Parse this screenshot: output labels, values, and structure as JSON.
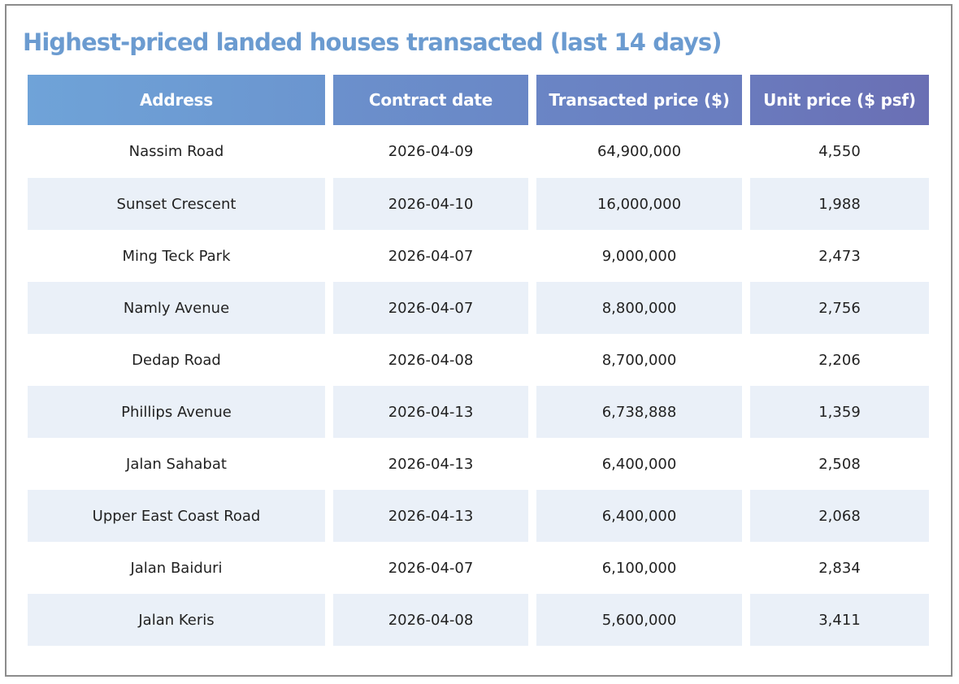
{
  "chart_data": {
    "type": "table",
    "title": "Highest-priced landed houses transacted (last 14 days)",
    "columns": [
      "Address",
      "Contract date",
      "Transacted price ($)",
      "Unit price ($ psf)"
    ],
    "rows": [
      [
        "Nassim Road",
        "2026-04-09",
        "64,900,000",
        "4,550"
      ],
      [
        "Sunset Crescent",
        "2026-04-10",
        "16,000,000",
        "1,988"
      ],
      [
        "Ming Teck Park",
        "2026-04-07",
        "9,000,000",
        "2,473"
      ],
      [
        "Namly Avenue",
        "2026-04-07",
        "8,800,000",
        "2,756"
      ],
      [
        "Dedap Road",
        "2026-04-08",
        "8,700,000",
        "2,206"
      ],
      [
        "Phillips Avenue",
        "2026-04-13",
        "6,738,888",
        "1,359"
      ],
      [
        "Jalan Sahabat",
        "2026-04-13",
        "6,400,000",
        "2,508"
      ],
      [
        "Upper East Coast Road",
        "2026-04-13",
        "6,400,000",
        "2,068"
      ],
      [
        "Jalan Baiduri",
        "2026-04-07",
        "6,100,000",
        "2,834"
      ],
      [
        "Jalan Keris",
        "2026-04-08",
        "5,600,000",
        "3,411"
      ]
    ],
    "colors": {
      "title": "#6b9bd0",
      "header_start": "#6fa3d8",
      "header_end": "#6a6fb4",
      "alt_row": "#eaf0f8",
      "frame_border": "#8c8c8c"
    }
  }
}
